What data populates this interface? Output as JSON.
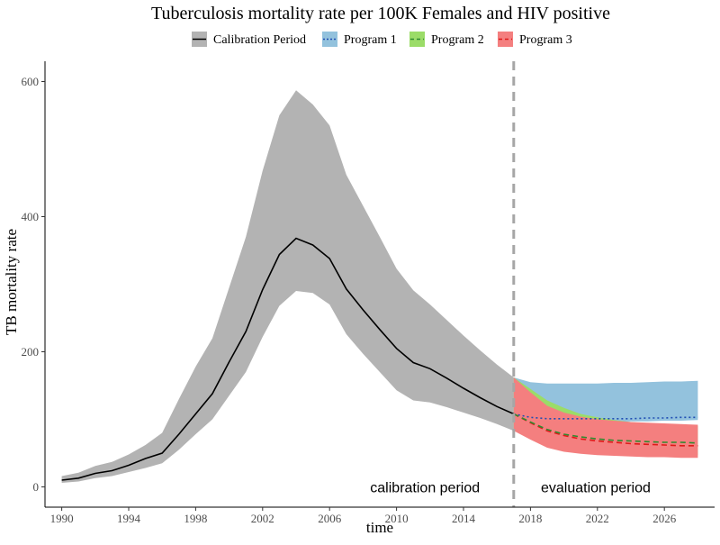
{
  "chart_data": {
    "type": "area",
    "title": "Tuberculosis mortality rate per 100K Females and HIV positive",
    "xlabel": "time",
    "ylabel": "TB mortality rate",
    "xlim": [
      1989,
      2029
    ],
    "ylim": [
      -30,
      630
    ],
    "x_ticks": [
      1990,
      1994,
      1998,
      2002,
      2006,
      2010,
      2014,
      2018,
      2022,
      2026
    ],
    "y_ticks": [
      0,
      200,
      400,
      600
    ],
    "grid": false,
    "legend_position": "top",
    "divider_x": 2017,
    "annotations": [
      {
        "text": "calibration period",
        "x": 2011.7,
        "y": 0
      },
      {
        "text": "evaluation period",
        "x": 2021.9,
        "y": 0
      }
    ],
    "series": [
      {
        "name": "Calibration Period",
        "color": "#000000",
        "band_color": "#b3b3b3",
        "line_style": "solid",
        "x": [
          1990,
          1991,
          1992,
          1993,
          1994,
          1995,
          1996,
          1997,
          1998,
          1999,
          2000,
          2001,
          2002,
          2003,
          2004,
          2005,
          2006,
          2007,
          2008,
          2009,
          2010,
          2011,
          2012,
          2013,
          2014,
          2015,
          2016,
          2017
        ],
        "y": [
          10,
          13,
          20,
          24,
          32,
          42,
          50,
          78,
          108,
          138,
          185,
          230,
          292,
          344,
          368,
          358,
          338,
          293,
          262,
          233,
          205,
          184,
          175,
          161,
          146,
          132,
          119,
          108
        ],
        "lower": [
          6,
          8,
          13,
          16,
          22,
          28,
          35,
          55,
          78,
          100,
          135,
          170,
          222,
          268,
          290,
          287,
          270,
          226,
          197,
          170,
          143,
          128,
          125,
          118,
          110,
          102,
          93,
          83
        ],
        "upper": [
          16,
          21,
          31,
          37,
          48,
          62,
          80,
          130,
          178,
          220,
          295,
          370,
          468,
          550,
          587,
          566,
          535,
          462,
          416,
          370,
          323,
          291,
          270,
          247,
          224,
          202,
          181,
          162
        ]
      },
      {
        "name": "Program 1",
        "color": "#1f4db3",
        "band_color": "#93c2dd",
        "line_style": "dotted",
        "x": [
          2017,
          2018,
          2019,
          2020,
          2021,
          2022,
          2023,
          2024,
          2025,
          2026,
          2027,
          2028
        ],
        "y": [
          108,
          103,
          101,
          101,
          101,
          101,
          101,
          101,
          102,
          102,
          103,
          103
        ],
        "lower": [
          83,
          90,
          92,
          94,
          95,
          96,
          96,
          97,
          97,
          98,
          98,
          99
        ],
        "upper": [
          162,
          155,
          153,
          153,
          153,
          153,
          154,
          154,
          155,
          156,
          156,
          157
        ]
      },
      {
        "name": "Program 2",
        "color": "#2f8a2f",
        "band_color": "#9bdc68",
        "line_style": "dashed",
        "x": [
          2017,
          2018,
          2019,
          2020,
          2021,
          2022,
          2023,
          2024,
          2025,
          2026,
          2027,
          2028
        ],
        "y": [
          108,
          96,
          85,
          78,
          74,
          71,
          69,
          68,
          67,
          66,
          66,
          65
        ],
        "lower": [
          83,
          75,
          66,
          60,
          56,
          53,
          51,
          50,
          49,
          48,
          47,
          47
        ],
        "upper": [
          162,
          145,
          128,
          117,
          108,
          103,
          99,
          96,
          94,
          92,
          91,
          90
        ]
      },
      {
        "name": "Program 3",
        "color": "#e01919",
        "band_color": "#f47f7f",
        "line_style": "dashed",
        "x": [
          2017,
          2018,
          2019,
          2020,
          2021,
          2022,
          2023,
          2024,
          2025,
          2026,
          2027,
          2028
        ],
        "y": [
          108,
          95,
          83,
          76,
          71,
          68,
          66,
          64,
          63,
          62,
          61,
          61
        ],
        "lower": [
          83,
          70,
          58,
          52,
          49,
          47,
          46,
          45,
          44,
          44,
          43,
          43
        ],
        "upper": [
          162,
          140,
          120,
          110,
          104,
          100,
          98,
          96,
          95,
          94,
          93,
          92
        ]
      }
    ]
  }
}
